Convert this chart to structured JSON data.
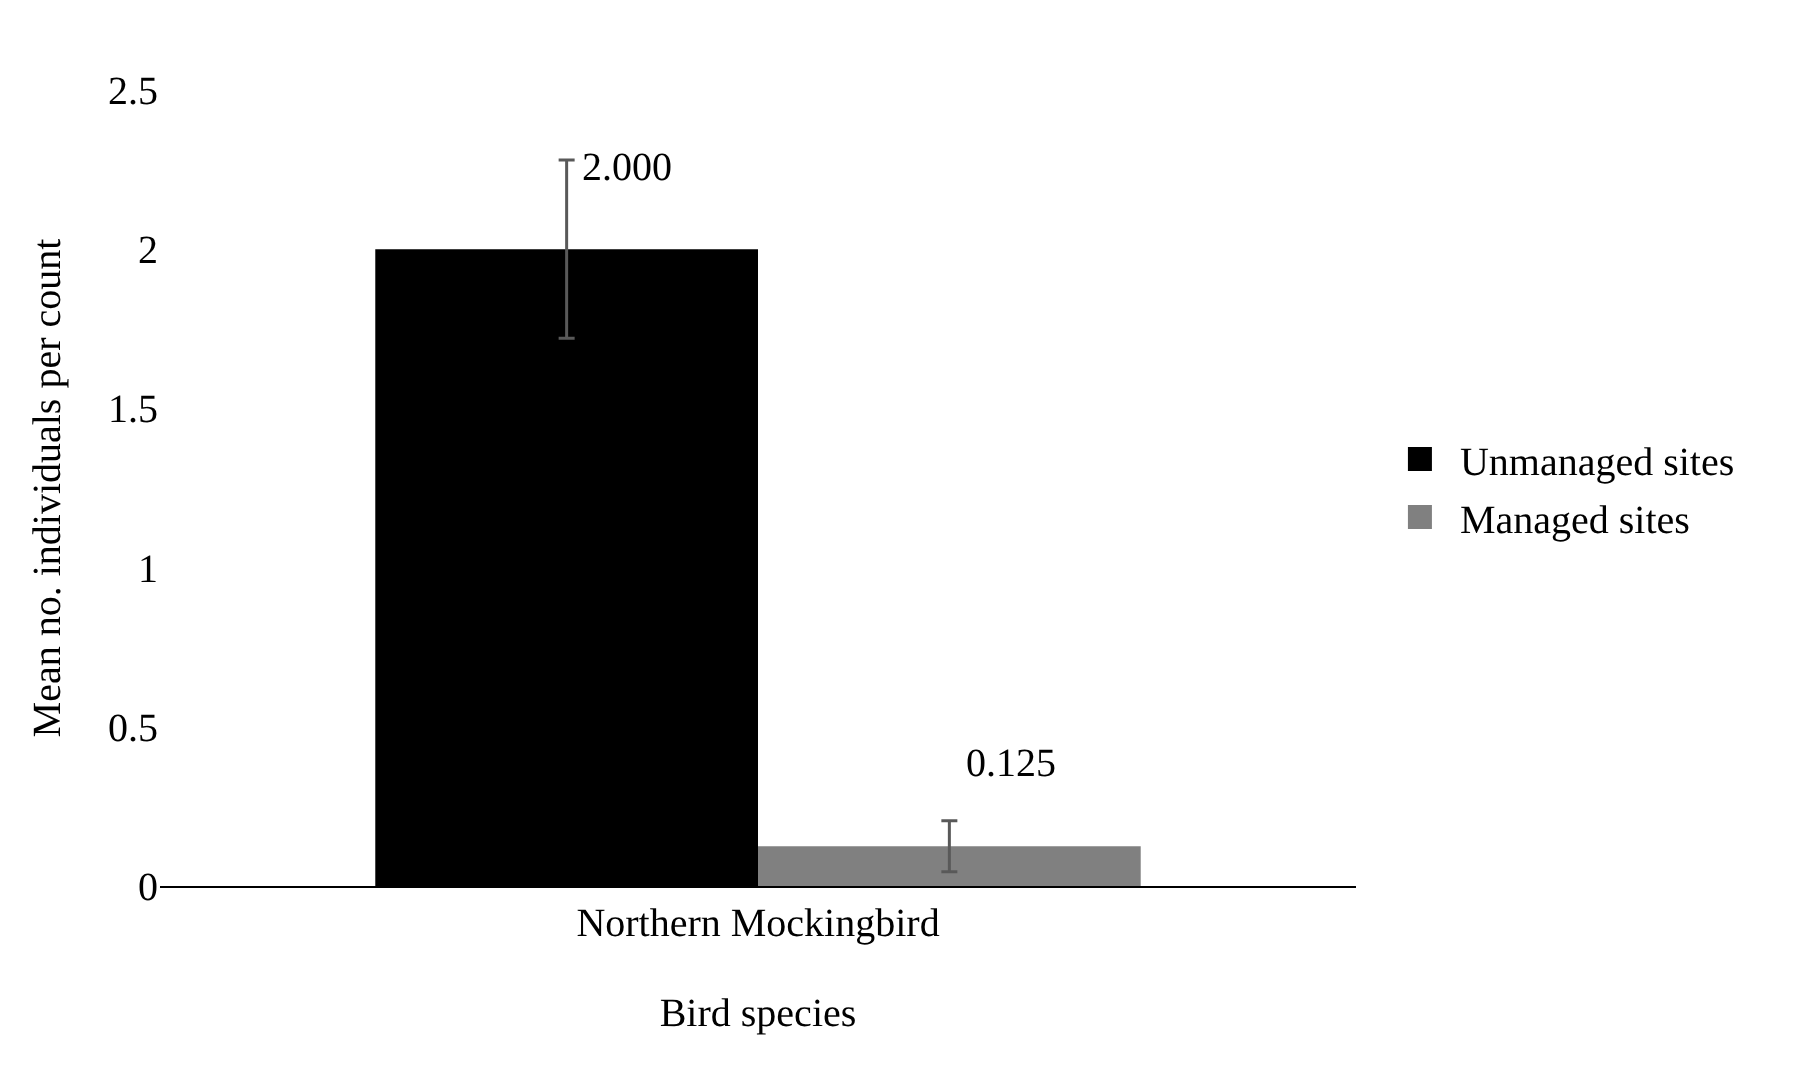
{
  "chart_data": {
    "type": "bar",
    "xlabel": "Bird species",
    "ylabel": "Mean no. individuals per count",
    "categories": [
      "Northern Mockingbird"
    ],
    "series": [
      {
        "name": "Unmanaged sites",
        "color": "#000000",
        "values": [
          2.0
        ],
        "errors": [
          0.28
        ],
        "value_labels": [
          "2.000"
        ]
      },
      {
        "name": "Managed sites",
        "color": "#808080",
        "values": [
          0.125
        ],
        "errors": [
          0.08
        ],
        "value_labels": [
          "0.125"
        ]
      }
    ],
    "ylim": [
      0,
      2.5
    ],
    "yticks": [
      0,
      0.5,
      1,
      1.5,
      2,
      2.5
    ],
    "grid": false,
    "legend": "right"
  }
}
